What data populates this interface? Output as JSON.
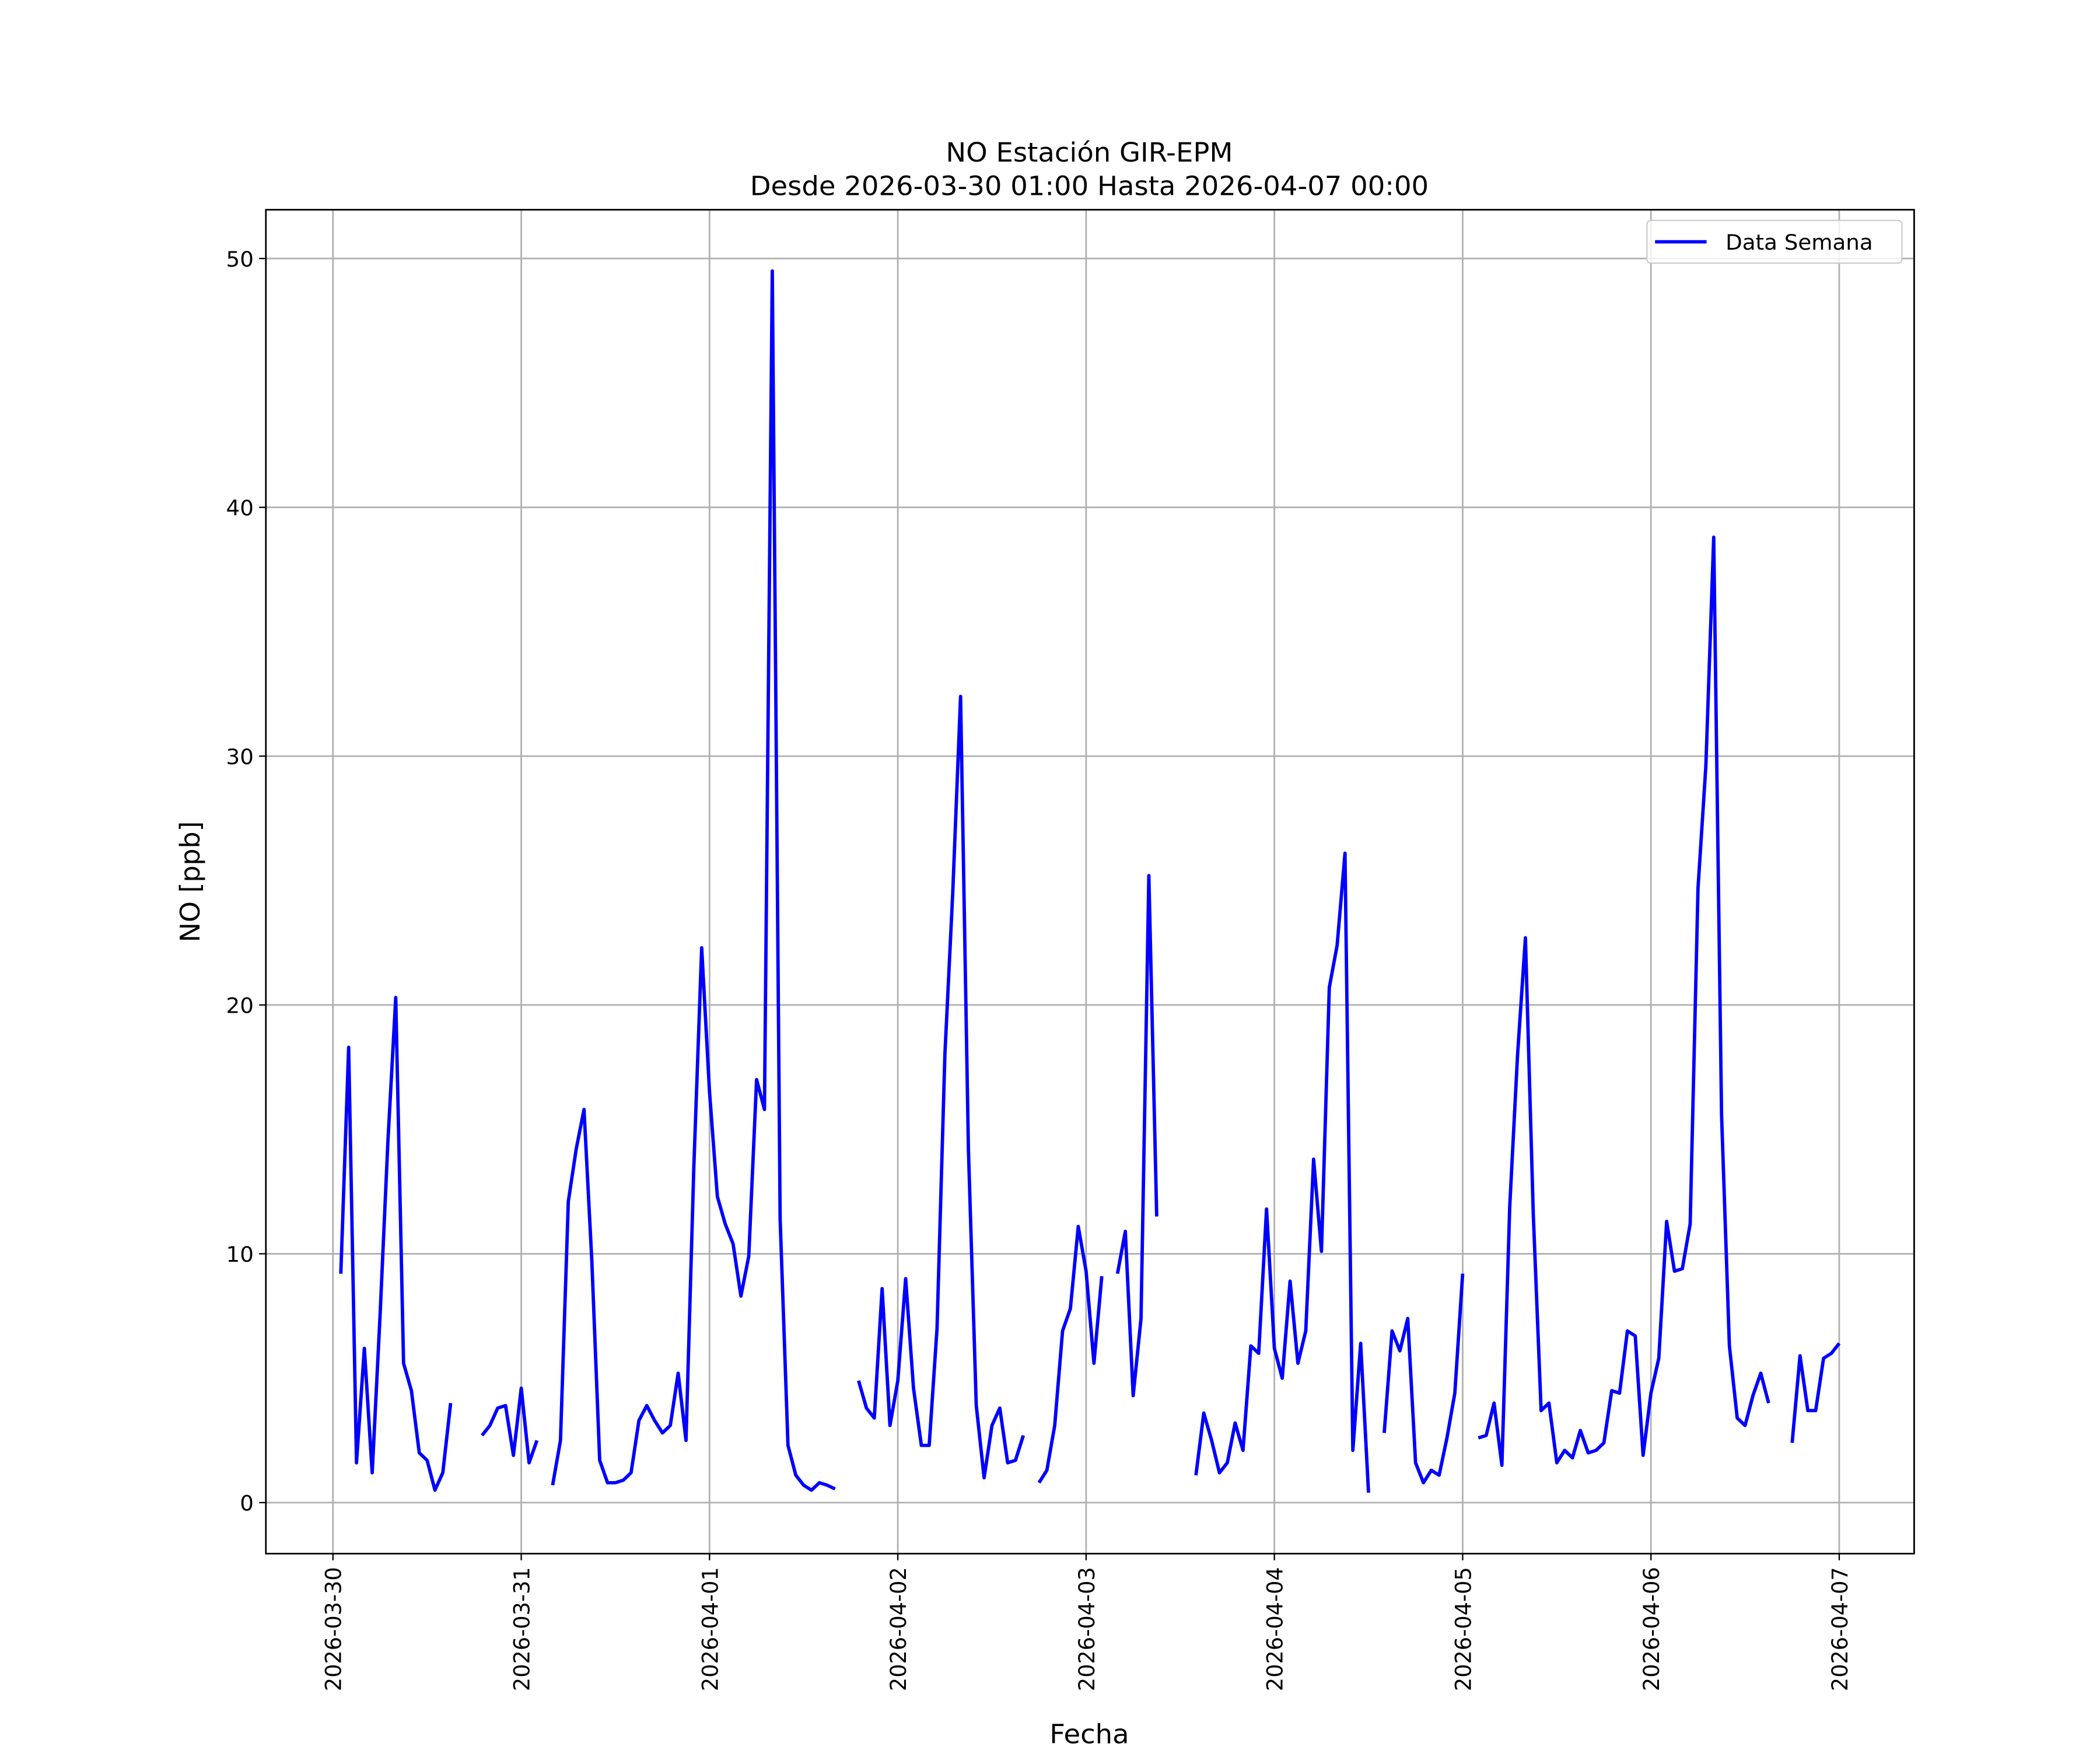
{
  "chart_data": {
    "type": "line",
    "title": "NO Estación GIR-EPM",
    "subtitle": "Desde 2026-03-30 01:00 Hasta 2026-04-07 00:00",
    "xlabel": "Fecha",
    "ylabel": "NO [ppb]",
    "grid": true,
    "legend": "upper right",
    "x": [
      "2026-03-30 01:00",
      "2026-03-30 02:00",
      "2026-03-30 03:00",
      "2026-03-30 04:00",
      "2026-03-30 05:00",
      "2026-03-30 06:00",
      "2026-03-30 07:00",
      "2026-03-30 08:00",
      "2026-03-30 09:00",
      "2026-03-30 10:00",
      "2026-03-30 11:00",
      "2026-03-30 12:00",
      "2026-03-30 13:00",
      "2026-03-30 14:00",
      "2026-03-30 15:00",
      "2026-03-30 16:00",
      "2026-03-30 17:00",
      "2026-03-30 18:00",
      "2026-03-30 19:00",
      "2026-03-30 20:00",
      "2026-03-30 21:00",
      "2026-03-30 22:00",
      "2026-03-30 23:00",
      "2026-03-31 00:00",
      "2026-03-31 01:00",
      "2026-03-31 02:00",
      "2026-03-31 03:00",
      "2026-03-31 04:00",
      "2026-03-31 05:00",
      "2026-03-31 06:00",
      "2026-03-31 07:00",
      "2026-03-31 08:00",
      "2026-03-31 09:00",
      "2026-03-31 10:00",
      "2026-03-31 11:00",
      "2026-03-31 12:00",
      "2026-03-31 13:00",
      "2026-03-31 14:00",
      "2026-03-31 15:00",
      "2026-03-31 16:00",
      "2026-03-31 17:00",
      "2026-03-31 18:00",
      "2026-03-31 19:00",
      "2026-03-31 20:00",
      "2026-03-31 21:00",
      "2026-03-31 22:00",
      "2026-03-31 23:00",
      "2026-04-01 00:00",
      "2026-04-01 01:00",
      "2026-04-01 02:00",
      "2026-04-01 03:00",
      "2026-04-01 04:00",
      "2026-04-01 05:00",
      "2026-04-01 06:00",
      "2026-04-01 07:00",
      "2026-04-01 08:00",
      "2026-04-01 09:00",
      "2026-04-01 10:00",
      "2026-04-01 11:00",
      "2026-04-01 12:00",
      "2026-04-01 13:00",
      "2026-04-01 14:00",
      "2026-04-01 15:00",
      "2026-04-01 16:00",
      "2026-04-01 17:00",
      "2026-04-01 18:00",
      "2026-04-01 19:00",
      "2026-04-01 20:00",
      "2026-04-01 21:00",
      "2026-04-01 22:00",
      "2026-04-01 23:00",
      "2026-04-02 00:00",
      "2026-04-02 01:00",
      "2026-04-02 02:00",
      "2026-04-02 03:00",
      "2026-04-02 04:00",
      "2026-04-02 05:00",
      "2026-04-02 06:00",
      "2026-04-02 07:00",
      "2026-04-02 08:00",
      "2026-04-02 09:00",
      "2026-04-02 10:00",
      "2026-04-02 11:00",
      "2026-04-02 12:00",
      "2026-04-02 13:00",
      "2026-04-02 14:00",
      "2026-04-02 15:00",
      "2026-04-02 16:00",
      "2026-04-02 17:00",
      "2026-04-02 18:00",
      "2026-04-02 19:00",
      "2026-04-02 20:00",
      "2026-04-02 21:00",
      "2026-04-02 22:00",
      "2026-04-02 23:00",
      "2026-04-03 00:00",
      "2026-04-03 01:00",
      "2026-04-03 02:00",
      "2026-04-03 03:00",
      "2026-04-03 04:00",
      "2026-04-03 05:00",
      "2026-04-03 06:00",
      "2026-04-03 07:00",
      "2026-04-03 08:00",
      "2026-04-03 09:00",
      "2026-04-03 10:00",
      "2026-04-03 11:00",
      "2026-04-03 12:00",
      "2026-04-03 13:00",
      "2026-04-03 14:00",
      "2026-04-03 15:00",
      "2026-04-03 16:00",
      "2026-04-03 17:00",
      "2026-04-03 18:00",
      "2026-04-03 19:00",
      "2026-04-03 20:00",
      "2026-04-03 21:00",
      "2026-04-03 22:00",
      "2026-04-03 23:00",
      "2026-04-04 00:00",
      "2026-04-04 01:00",
      "2026-04-04 02:00",
      "2026-04-04 03:00",
      "2026-04-04 04:00",
      "2026-04-04 05:00",
      "2026-04-04 06:00",
      "2026-04-04 07:00",
      "2026-04-04 08:00",
      "2026-04-04 09:00",
      "2026-04-04 10:00",
      "2026-04-04 11:00",
      "2026-04-04 12:00",
      "2026-04-04 13:00",
      "2026-04-04 14:00",
      "2026-04-04 15:00",
      "2026-04-04 16:00",
      "2026-04-04 17:00",
      "2026-04-04 18:00",
      "2026-04-04 19:00",
      "2026-04-04 20:00",
      "2026-04-04 21:00",
      "2026-04-04 22:00",
      "2026-04-04 23:00",
      "2026-04-05 00:00",
      "2026-04-05 01:00",
      "2026-04-05 02:00",
      "2026-04-05 03:00",
      "2026-04-05 04:00",
      "2026-04-05 05:00",
      "2026-04-05 06:00",
      "2026-04-05 07:00",
      "2026-04-05 08:00",
      "2026-04-05 09:00",
      "2026-04-05 10:00",
      "2026-04-05 11:00",
      "2026-04-05 12:00",
      "2026-04-05 13:00",
      "2026-04-05 14:00",
      "2026-04-05 15:00",
      "2026-04-05 16:00",
      "2026-04-05 17:00",
      "2026-04-05 18:00",
      "2026-04-05 19:00",
      "2026-04-05 20:00",
      "2026-04-05 21:00",
      "2026-04-05 22:00",
      "2026-04-05 23:00",
      "2026-04-06 00:00",
      "2026-04-06 01:00",
      "2026-04-06 02:00",
      "2026-04-06 03:00",
      "2026-04-06 04:00",
      "2026-04-06 05:00",
      "2026-04-06 06:00",
      "2026-04-06 07:00",
      "2026-04-06 08:00",
      "2026-04-06 09:00",
      "2026-04-06 10:00",
      "2026-04-06 11:00",
      "2026-04-06 12:00",
      "2026-04-06 13:00",
      "2026-04-06 14:00",
      "2026-04-06 15:00",
      "2026-04-06 16:00",
      "2026-04-06 17:00",
      "2026-04-06 18:00",
      "2026-04-06 19:00",
      "2026-04-06 20:00",
      "2026-04-06 21:00",
      "2026-04-06 22:00",
      "2026-04-06 23:00",
      "2026-04-07 00:00"
    ],
    "series": [
      {
        "name": "Data Semana",
        "color": "#0000ff",
        "values": [
          9.2,
          18.3,
          1.6,
          6.2,
          1.2,
          7.5,
          14.5,
          20.3,
          5.6,
          4.5,
          2.0,
          1.7,
          0.5,
          1.2,
          4.0,
          null,
          null,
          null,
          2.7,
          3.1,
          3.8,
          3.9,
          1.9,
          4.6,
          1.6,
          2.5,
          null,
          0.7,
          2.5,
          12.1,
          14.2,
          15.8,
          9.7,
          1.7,
          0.8,
          0.8,
          0.9,
          1.2,
          3.3,
          3.9,
          3.3,
          2.8,
          3.1,
          5.2,
          2.5,
          13.5,
          22.3,
          16.5,
          12.3,
          11.2,
          10.4,
          8.3,
          9.9,
          17.0,
          15.8,
          49.5,
          11.4,
          2.3,
          1.1,
          0.7,
          0.5,
          0.8,
          0.7,
          0.55,
          null,
          null,
          4.9,
          3.8,
          3.4,
          8.6,
          3.1,
          4.9,
          9.0,
          4.6,
          2.3,
          2.3,
          7.0,
          18.0,
          24.5,
          32.4,
          14.2,
          3.9,
          1.0,
          3.1,
          3.8,
          1.6,
          1.7,
          2.7,
          null,
          0.8,
          1.3,
          3.1,
          6.9,
          7.8,
          11.1,
          9.3,
          5.6,
          9.1,
          null,
          9.2,
          10.9,
          4.3,
          7.4,
          25.2,
          11.5,
          null,
          null,
          null,
          null,
          1.1,
          3.6,
          2.5,
          1.2,
          1.6,
          3.2,
          2.1,
          6.3,
          6.0,
          11.8,
          6.2,
          5.0,
          8.9,
          5.6,
          6.9,
          13.8,
          10.1,
          20.7,
          22.4,
          26.1,
          2.1,
          6.4,
          0.4,
          null,
          2.8,
          6.9,
          6.1,
          7.4,
          1.6,
          0.8,
          1.3,
          1.1,
          2.6,
          4.4,
          9.2,
          null,
          2.6,
          2.7,
          4.0,
          1.5,
          11.9,
          18.0,
          22.7,
          11.6,
          3.7,
          4.0,
          1.6,
          2.1,
          1.8,
          2.9,
          2.0,
          2.1,
          2.4,
          4.5,
          4.4,
          6.9,
          6.7,
          1.9,
          4.4,
          5.8,
          11.3,
          9.3,
          9.4,
          11.2,
          24.7,
          29.6,
          38.8,
          15.6,
          6.3,
          3.4,
          3.1,
          4.3,
          5.2,
          4.0,
          null,
          null,
          2.4,
          5.9,
          3.7,
          3.7,
          5.8,
          6.0,
          6.4
        ]
      }
    ],
    "xlim": [
      "2026-03-29 15:27",
      "2026-04-07 09:33"
    ],
    "xticks": [
      "2026-03-30",
      "2026-03-31",
      "2026-04-01",
      "2026-04-02",
      "2026-04-03",
      "2026-04-04",
      "2026-04-05",
      "2026-04-06",
      "2026-04-07"
    ],
    "ylim": [
      -2.05,
      51.96
    ],
    "yticks": [
      0,
      10,
      20,
      30,
      40,
      50
    ]
  }
}
